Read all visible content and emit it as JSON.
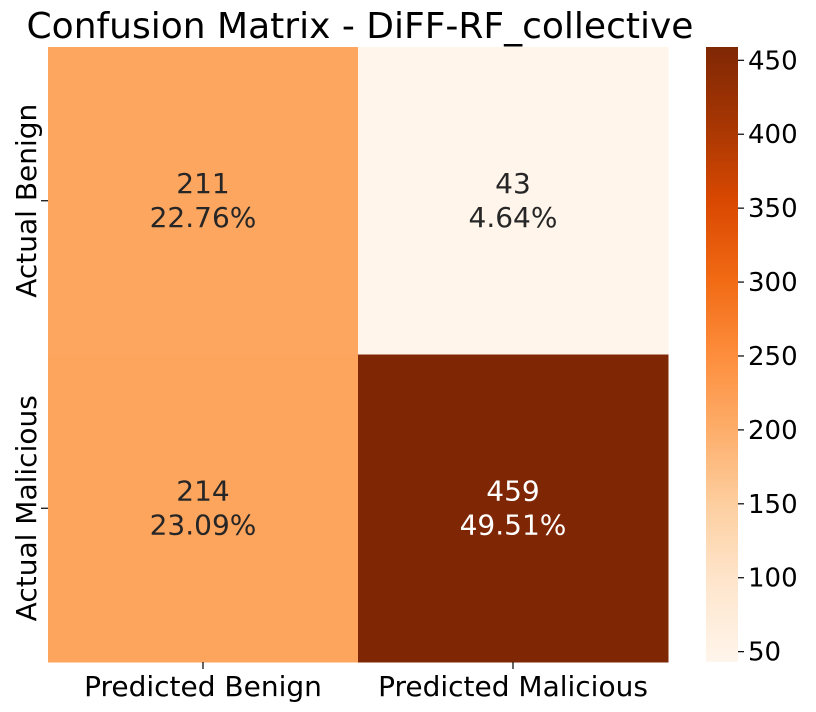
{
  "chart_data": {
    "type": "heatmap",
    "title": "Confusion Matrix - DiFF-RF_collective",
    "row_labels": [
      "Actual Benign",
      "Actual Malicious"
    ],
    "col_labels": [
      "Predicted Benign",
      "Predicted Malicious"
    ],
    "values": [
      [
        211,
        43
      ],
      [
        214,
        459
      ]
    ],
    "percentages": [
      [
        "22.76%",
        "4.64%"
      ],
      [
        "23.09%",
        "49.51%"
      ]
    ],
    "colormap": "Oranges",
    "color_range": [
      43,
      459
    ],
    "colorbar": {
      "ticks": [
        50,
        100,
        150,
        200,
        250,
        300,
        350,
        400,
        450
      ],
      "tick_labels": [
        "50",
        "100",
        "150",
        "200",
        "250",
        "300",
        "350",
        "400",
        "450"
      ]
    },
    "text_colors": {
      "dark": "#262626",
      "light": "#ffffff"
    }
  }
}
